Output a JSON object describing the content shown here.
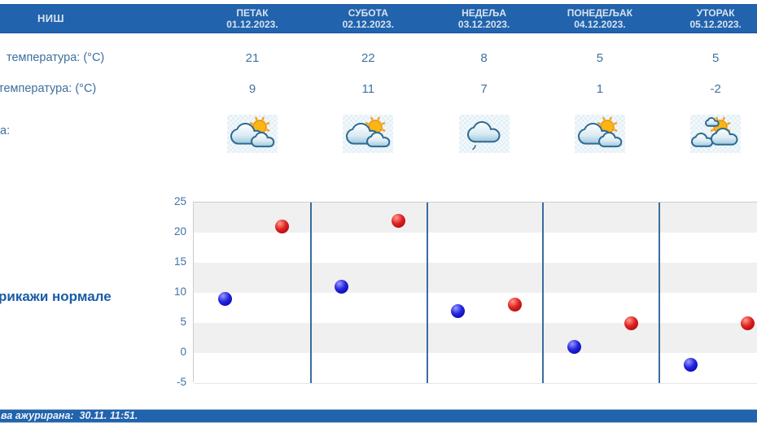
{
  "header": {
    "station": "НИШ",
    "days": [
      {
        "name": "ПЕТАК",
        "date": "01.12.2023."
      },
      {
        "name": "СУБОТА",
        "date": "02.12.2023."
      },
      {
        "name": "НЕДЕЉА",
        "date": "03.12.2023."
      },
      {
        "name": "ПОНЕДЕЉАК",
        "date": "04.12.2023."
      },
      {
        "name": "УТОРАК",
        "date": "05.12.2023."
      }
    ]
  },
  "rows": {
    "max_temp": {
      "label": "температура: (°C)",
      "values": [
        "21",
        "22",
        "8",
        "5",
        "5"
      ]
    },
    "min_temp": {
      "label": "температура: (°C)",
      "values": [
        "9",
        "11",
        "7",
        "1",
        "-2"
      ]
    },
    "weather": {
      "label": "а:",
      "icons": [
        "cloud-sun-icon",
        "cloud-sun-icon",
        "cloud-drizzle-icon",
        "cloud-sun-icon",
        "sun-clouds-icon"
      ]
    }
  },
  "normals_link": "рикажи нормале",
  "footer": {
    "updated": "ва ажурирана:  30.11. 11:51."
  },
  "colors": {
    "header_blue": "#2163ac",
    "text_blue": "#3d6f9e",
    "link_blue": "#1a5ca8",
    "axis_label_blue": "#4272a3",
    "day_separator_blue": "#3a6c9e",
    "min_dot_blue": "#1515cc",
    "max_dot_red": "#cc1515",
    "band_gray": "#f0f0f0"
  },
  "chart_data": {
    "type": "scatter",
    "categories": [
      "ПЕТАК 01.12.2023.",
      "СУБОТА 02.12.2023.",
      "НЕДЕЉА 03.12.2023.",
      "ПОНЕДЕЉАК 04.12.2023.",
      "УТОРАК 05.12.2023."
    ],
    "series": [
      {
        "name": "минимална температура (°C)",
        "color": "#1515cc",
        "values": [
          9,
          11,
          7,
          1,
          -2
        ]
      },
      {
        "name": "максимална температура (°C)",
        "color": "#cc1515",
        "values": [
          21,
          22,
          8,
          5,
          5
        ]
      }
    ],
    "ylim": [
      -5,
      25
    ],
    "yticks": [
      25,
      20,
      15,
      10,
      5,
      0,
      -5
    ],
    "grid": "horizontal bands every 5 units, vertical day separators",
    "legend": "none"
  }
}
